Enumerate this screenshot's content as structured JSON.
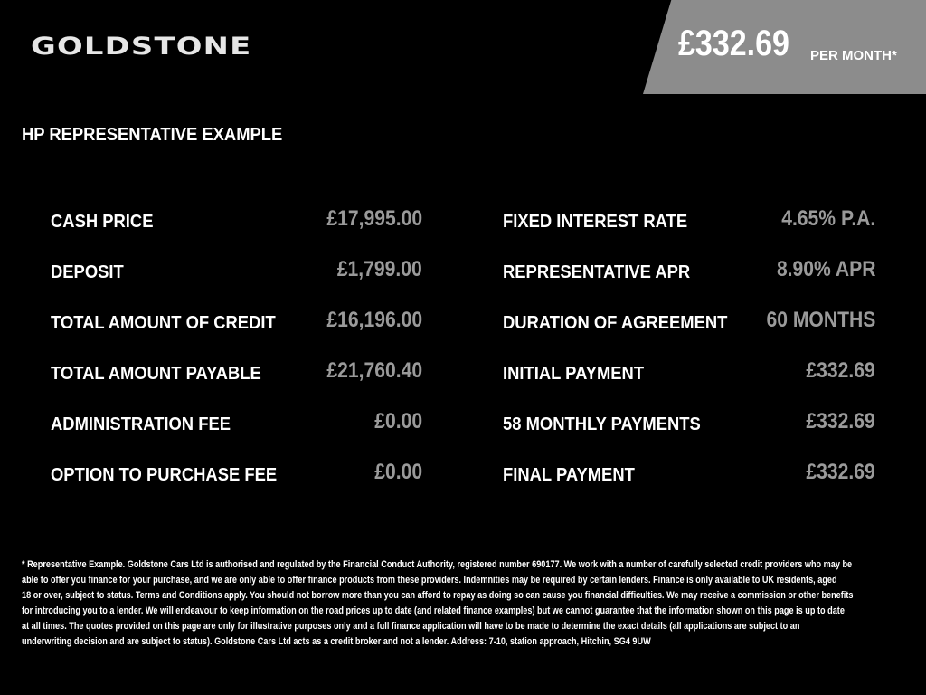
{
  "brand": {
    "logo": "GOLDSTONE"
  },
  "header": {
    "monthly_price": "£332.69",
    "per_month_label": "PER MONTH*",
    "box_color": "#8c8c8c"
  },
  "title": "HP REPRESENTATIVE EXAMPLE",
  "left_items": [
    {
      "label": "CASH PRICE",
      "value": "£17,995.00"
    },
    {
      "label": "DEPOSIT",
      "value": "£1,799.00"
    },
    {
      "label": "TOTAL AMOUNT OF CREDIT",
      "value": "£16,196.00"
    },
    {
      "label": "TOTAL AMOUNT PAYABLE",
      "value": "£21,760.40"
    },
    {
      "label": "ADMINISTRATION FEE",
      "value": "£0.00"
    },
    {
      "label": "OPTION TO PURCHASE FEE",
      "value": "£0.00"
    }
  ],
  "right_items": [
    {
      "label": "FIXED INTEREST RATE",
      "value": "4.65% P.A."
    },
    {
      "label": "REPRESENTATIVE APR",
      "value": "8.90% APR"
    },
    {
      "label": "DURATION OF AGREEMENT",
      "value": "60 MONTHS"
    },
    {
      "label": "INITIAL PAYMENT",
      "value": "£332.69"
    },
    {
      "label": "58 MONTHLY PAYMENTS",
      "value": "£332.69"
    },
    {
      "label": "FINAL PAYMENT",
      "value": "£332.69"
    }
  ],
  "footnote_lines": [
    "* Representative Example. Goldstone Cars Ltd is authorised and regulated by the Financial Conduct Authority, registered number 690177. We work with a number of carefully selected credit providers who may be",
    "able to offer you finance for your purchase, and we are only able to offer finance products from these providers. Indemnities may be required by certain lenders. Finance is only available to UK residents, aged",
    "18 or over, subject to status. Terms and Conditions apply. You should not borrow more than you can afford to repay as doing so can cause you financial difficulties. We may receive a commission or other benefits",
    "for introducing you to a lender. We will endeavour to keep information on the road prices up to date (and related finance examples) but we cannot guarantee that the information shown on this page is up to date",
    "at all times. The quotes provided on this page are only for illustrative purposes only and a full finance application will have to be made to determine the exact details (all applications are subject to an",
    "underwriting decision and are subject to status). Goldstone Cars Ltd acts as a credit broker and not a lender. Address: 7-10, station approach, Hitchin, SG4 9UW"
  ]
}
